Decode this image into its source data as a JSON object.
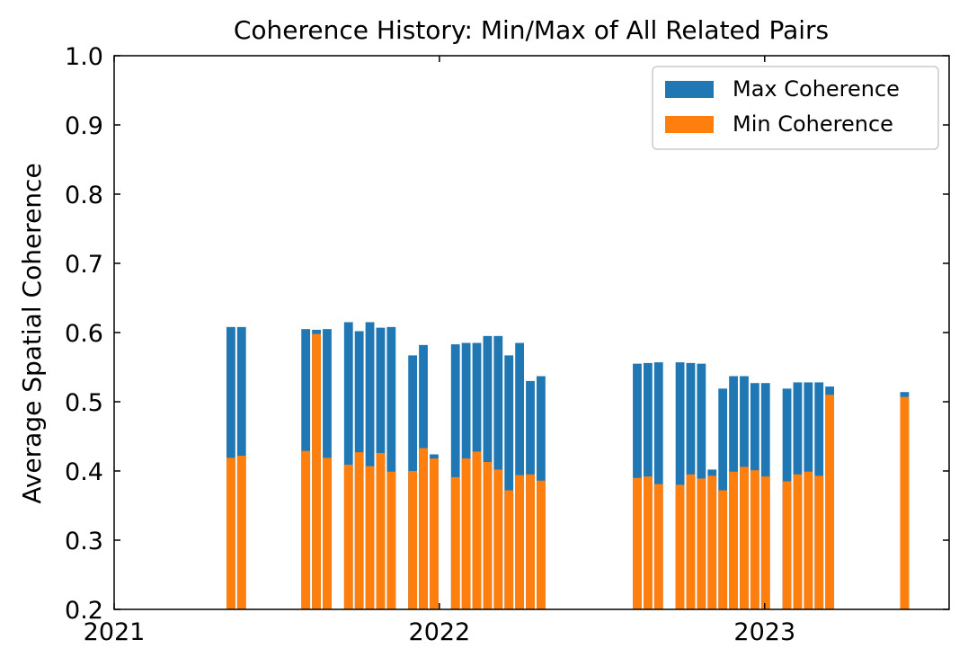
{
  "chart_data": {
    "type": "bar",
    "title": "Coherence History: Min/Max of All Related Pairs",
    "xlabel": "",
    "ylabel": "Average Spatial Coherence",
    "ylim": [
      0.2,
      1.0
    ],
    "xlim": [
      "2021-01-01",
      "2023-07-27"
    ],
    "yticks": [
      "0.2",
      "0.3",
      "0.4",
      "0.5",
      "0.6",
      "0.7",
      "0.8",
      "0.9",
      "1.0"
    ],
    "xticks": [
      {
        "label": "2021",
        "date": "2021-01-01"
      },
      {
        "label": "2022",
        "date": "2022-01-01"
      },
      {
        "label": "2023",
        "date": "2023-01-01"
      }
    ],
    "legend_position": "top-right",
    "grid": false,
    "series": [
      {
        "name": "Max Coherence",
        "color": "#1f77b4",
        "values": [
          0.608,
          0.608,
          0.605,
          0.604,
          0.605,
          0.615,
          0.602,
          0.615,
          0.607,
          0.608,
          0.567,
          0.582,
          0.424,
          0.583,
          0.585,
          0.585,
          0.595,
          0.595,
          0.567,
          0.585,
          0.53,
          0.537,
          0.555,
          0.556,
          0.557,
          0.557,
          0.556,
          0.555,
          0.402,
          0.519,
          0.537,
          0.537,
          0.527,
          0.527,
          0.519,
          0.528,
          0.528,
          0.528,
          0.522,
          0.514
        ]
      },
      {
        "name": "Min Coherence",
        "color": "#ff7f0e",
        "values": [
          0.419,
          0.422,
          0.429,
          0.598,
          0.419,
          0.409,
          0.427,
          0.407,
          0.426,
          0.399,
          0.4,
          0.433,
          0.418,
          0.391,
          0.418,
          0.428,
          0.413,
          0.402,
          0.372,
          0.394,
          0.395,
          0.386,
          0.39,
          0.392,
          0.381,
          0.38,
          0.395,
          0.389,
          0.393,
          0.372,
          0.399,
          0.406,
          0.401,
          0.392,
          0.385,
          0.395,
          0.399,
          0.393,
          0.51,
          0.507
        ]
      }
    ],
    "dates": [
      "2021-05-12",
      "2021-05-24",
      "2021-08-04",
      "2021-08-16",
      "2021-08-28",
      "2021-09-21",
      "2021-10-03",
      "2021-10-15",
      "2021-10-27",
      "2021-11-08",
      "2021-12-02",
      "2021-12-14",
      "2021-12-26",
      "2022-01-19",
      "2022-01-31",
      "2022-02-12",
      "2022-02-24",
      "2022-03-08",
      "2022-03-20",
      "2022-04-01",
      "2022-04-13",
      "2022-04-25",
      "2022-08-11",
      "2022-08-23",
      "2022-09-04",
      "2022-09-28",
      "2022-10-10",
      "2022-10-22",
      "2022-11-03",
      "2022-11-15",
      "2022-11-27",
      "2022-12-09",
      "2022-12-21",
      "2023-01-02",
      "2023-01-26",
      "2023-02-07",
      "2023-02-19",
      "2023-03-03",
      "2023-03-15",
      "2023-06-07"
    ]
  }
}
